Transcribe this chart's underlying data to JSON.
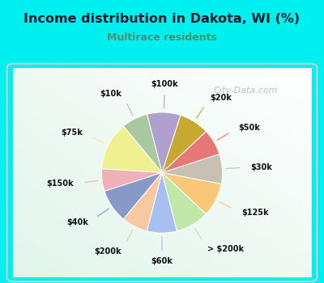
{
  "title": "Income distribution in Dakota, WI (%)",
  "subtitle": "Multirace residents",
  "title_color": "#1a1a2e",
  "subtitle_color": "#5a8a6a",
  "bg_cyan": "#00f0f0",
  "chart_bg_top": "#e8f5f0",
  "chart_bg_bottom": "#d0ede5",
  "watermark": "City-Data.com",
  "labels": [
    "$100k",
    "$10k",
    "$75k",
    "$150k",
    "$40k",
    "$200k",
    "$60k",
    "> $200k",
    "$125k",
    "$30k",
    "$50k",
    "$20k"
  ],
  "values": [
    9,
    7,
    13,
    6,
    9,
    7,
    8,
    9,
    9,
    8,
    7,
    8
  ],
  "colors": [
    "#b0a0d0",
    "#a8c8a0",
    "#f0f090",
    "#f0b0b8",
    "#8898c8",
    "#f8c8a0",
    "#a8c0f0",
    "#c0e8a8",
    "#f8c878",
    "#c8c0b0",
    "#e87878",
    "#c8a830"
  ],
  "startangle": 72
}
